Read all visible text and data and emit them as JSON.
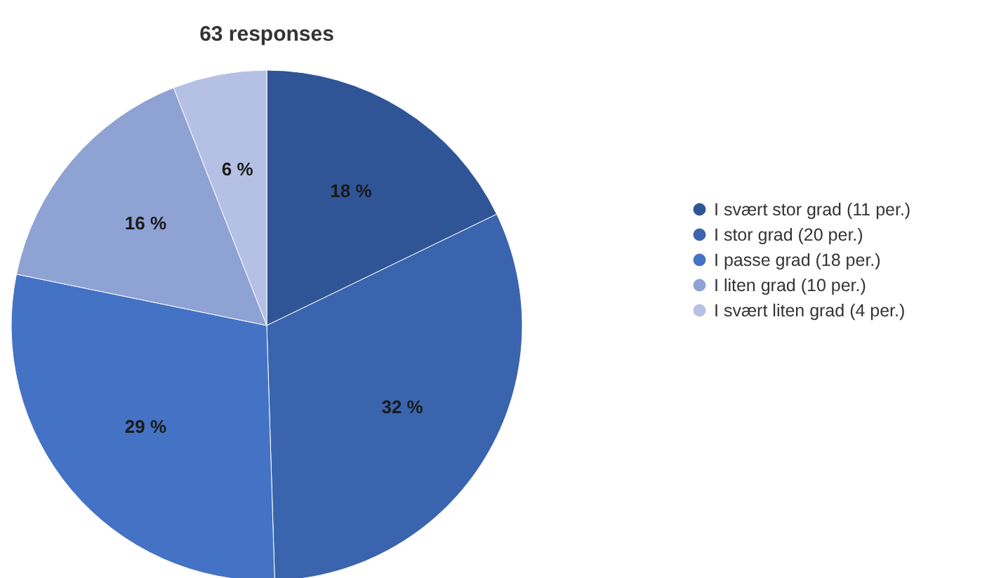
{
  "chart_data": {
    "type": "pie",
    "title": "63 responses",
    "categories": [
      "I svært stor grad (11 per.)",
      "I stor grad (20 per.)",
      "I passe grad (18 per.)",
      "I liten grad (10 per.)",
      "I svært liten grad (4 per.)"
    ],
    "values": [
      18,
      32,
      29,
      16,
      6
    ],
    "value_labels": [
      "18 %",
      "32 %",
      "29 %",
      "16 %",
      "6 %"
    ],
    "colors": [
      "#2f5597",
      "#3a64ad",
      "#4472c4",
      "#8fa2d4",
      "#b4c1e4"
    ],
    "legend": "right"
  }
}
